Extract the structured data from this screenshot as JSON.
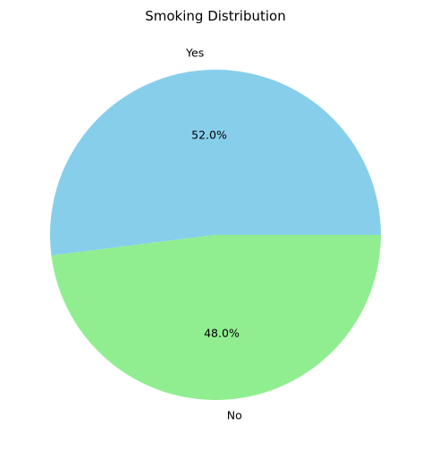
{
  "chart_data": {
    "type": "pie",
    "title": "Smoking Distribution",
    "categories": [
      "Yes",
      "No"
    ],
    "values": [
      52.0,
      48.0
    ],
    "percent_labels": [
      "52.0%",
      "48.0%"
    ],
    "colors": [
      "#87ceeb",
      "#90ee90"
    ],
    "start_angle_deg": 0,
    "direction": "counterclockwise",
    "legend": "none"
  }
}
